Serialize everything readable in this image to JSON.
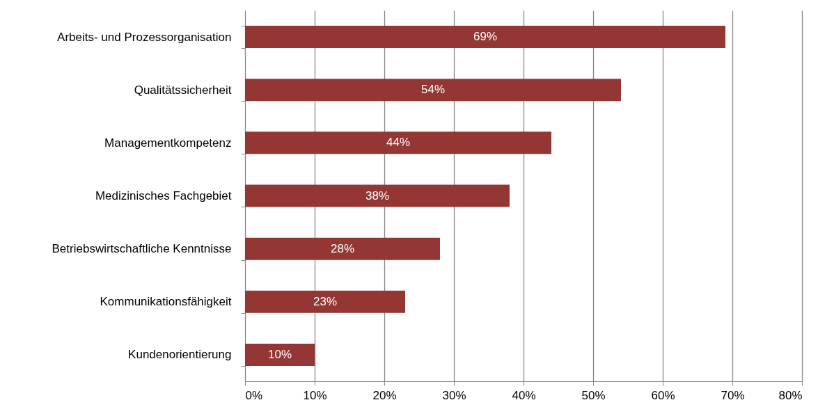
{
  "chart_data": {
    "type": "bar",
    "orientation": "horizontal",
    "categories": [
      "Arbeits- und Prozessorganisation",
      "Qualitätssicherheit",
      "Managementkompetenz",
      "Medizinisches Fachgebiet",
      "Betriebswirtschaftliche Kenntnisse",
      "Kommunikationsfähigkeit",
      "Kundenorientierung"
    ],
    "values": [
      69,
      54,
      44,
      38,
      28,
      23,
      10
    ],
    "value_labels": [
      "69%",
      "54%",
      "44%",
      "38%",
      "28%",
      "23%",
      "10%"
    ],
    "color": "#943634",
    "xlim": [
      0,
      80
    ],
    "xticks": [
      {
        "value": 0,
        "label": "0%"
      },
      {
        "value": 10,
        "label": "10%"
      },
      {
        "value": 20,
        "label": "20%"
      },
      {
        "value": 30,
        "label": "30%"
      },
      {
        "value": 40,
        "label": "40%"
      },
      {
        "value": 50,
        "label": "50%"
      },
      {
        "value": 60,
        "label": "60%"
      },
      {
        "value": 70,
        "label": "70%"
      },
      {
        "value": 80,
        "label": "80%"
      }
    ],
    "grid": "x"
  }
}
